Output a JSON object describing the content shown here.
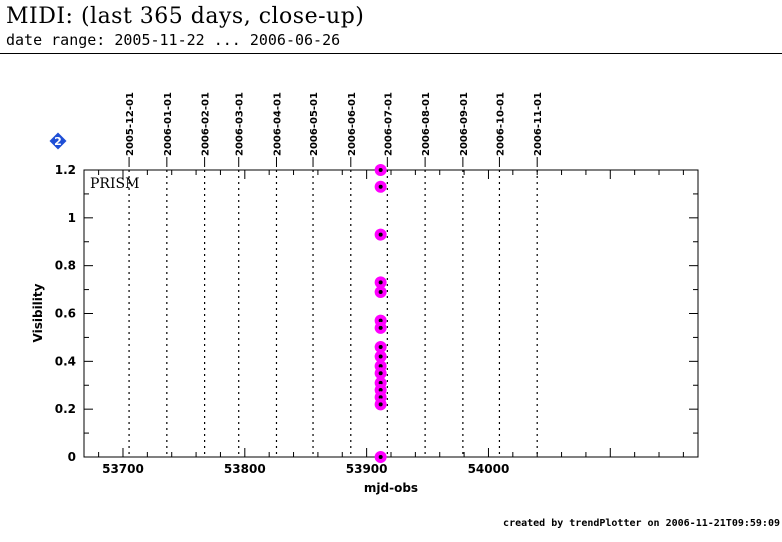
{
  "header": {
    "title": "MIDI: (last 365 days, close-up)",
    "subtitle": "date range: 2005-11-22 ... 2006-06-26"
  },
  "footer": {
    "text": "created by trendPlotter on 2006-11-21T09:59:09"
  },
  "badge": {
    "text": "2",
    "color": "#1f4fd6"
  },
  "chart_data": {
    "type": "scatter",
    "xlabel": "mjd-obs",
    "ylabel": "Visibility",
    "panel_label": "PRISM",
    "xlim": [
      53668,
      54172
    ],
    "ylim": [
      0,
      1.2
    ],
    "x_ticks": [
      "53700",
      "53800",
      "53900",
      "54000"
    ],
    "y_ticks": [
      "0",
      "0.2",
      "0.4",
      "0.6",
      "0.8",
      "1",
      "1.2"
    ],
    "grid": "dotted vertical lines at month starts",
    "month_markers": [
      {
        "label": "2005-12-01",
        "mjd": 53705
      },
      {
        "label": "2006-01-01",
        "mjd": 53736
      },
      {
        "label": "2006-02-01",
        "mjd": 53767
      },
      {
        "label": "2006-03-01",
        "mjd": 53795
      },
      {
        "label": "2006-04-01",
        "mjd": 53826
      },
      {
        "label": "2006-05-01",
        "mjd": 53856
      },
      {
        "label": "2006-06-01",
        "mjd": 53887
      },
      {
        "label": "2006-07-01",
        "mjd": 53917
      },
      {
        "label": "2006-08-01",
        "mjd": 53948
      },
      {
        "label": "2006-09-01",
        "mjd": 53979
      },
      {
        "label": "2006-10-01",
        "mjd": 54009
      },
      {
        "label": "2006-11-01",
        "mjd": 54040
      }
    ],
    "marker_color": "#ff00ff",
    "points": [
      {
        "x": 53911.5,
        "y": 1.2
      },
      {
        "x": 53911.5,
        "y": 1.13
      },
      {
        "x": 53911.5,
        "y": 0.93
      },
      {
        "x": 53911.5,
        "y": 0.73
      },
      {
        "x": 53911.5,
        "y": 0.69
      },
      {
        "x": 53911.5,
        "y": 0.57
      },
      {
        "x": 53911.5,
        "y": 0.54
      },
      {
        "x": 53911.5,
        "y": 0.46
      },
      {
        "x": 53911.5,
        "y": 0.42
      },
      {
        "x": 53911.5,
        "y": 0.38
      },
      {
        "x": 53911.5,
        "y": 0.35
      },
      {
        "x": 53911.5,
        "y": 0.31
      },
      {
        "x": 53911.5,
        "y": 0.28
      },
      {
        "x": 53911.5,
        "y": 0.25
      },
      {
        "x": 53911.5,
        "y": 0.22
      },
      {
        "x": 53911.5,
        "y": 0.0
      }
    ]
  }
}
